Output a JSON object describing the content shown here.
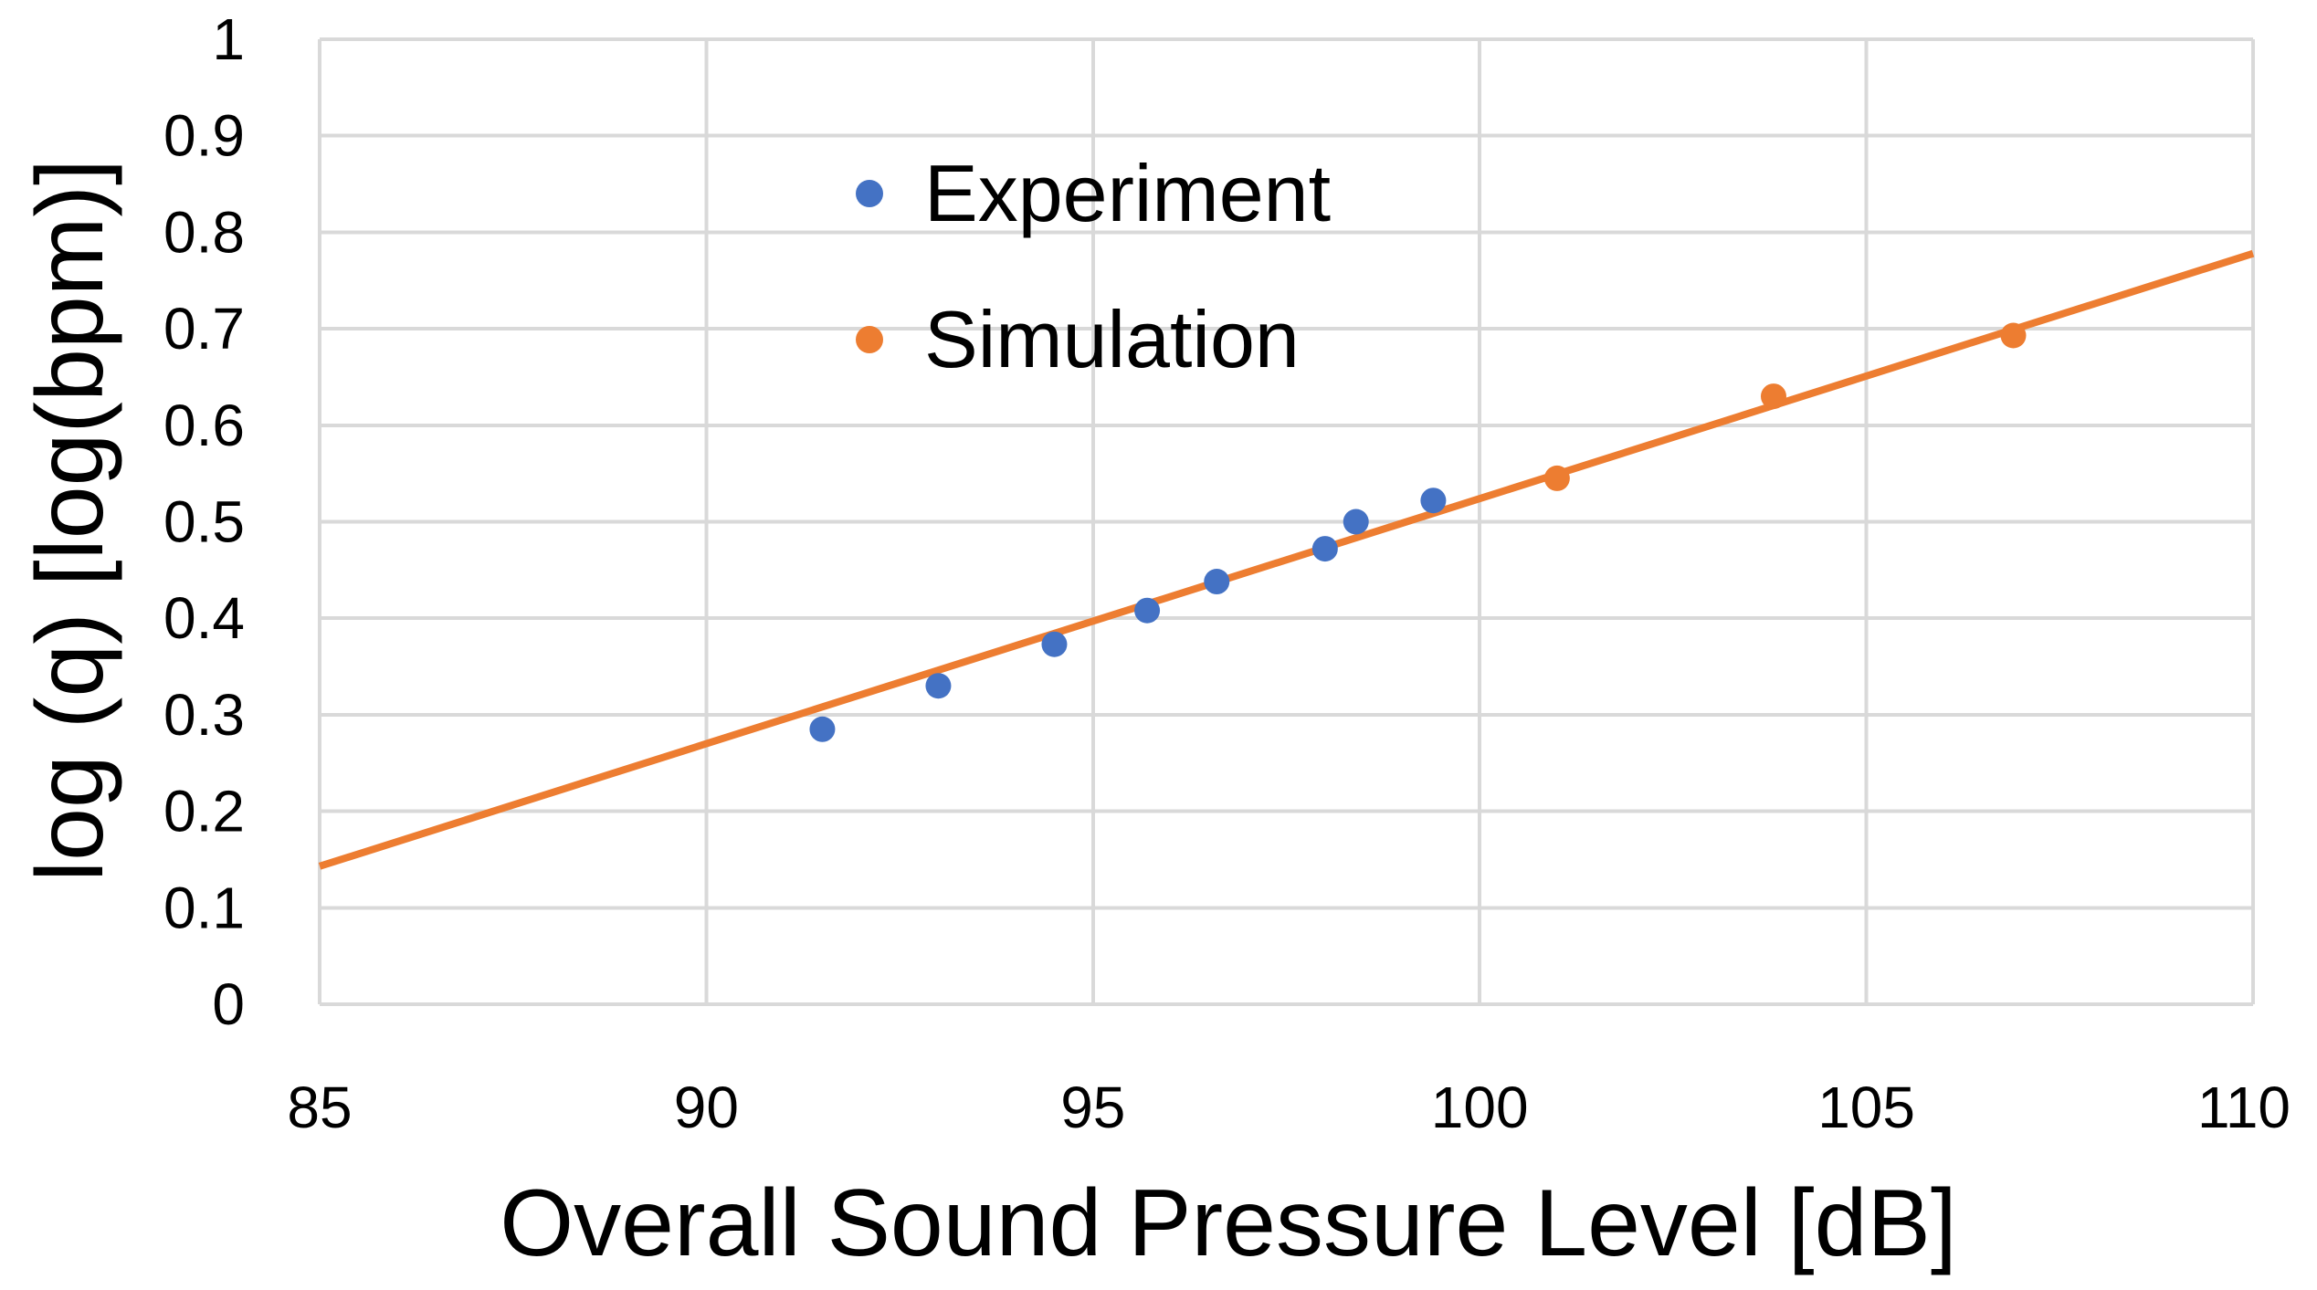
{
  "chart_data": {
    "type": "scatter",
    "xlabel": "Overall Sound Pressure Level [dB]",
    "ylabel": "log (q) [log(bpm)]",
    "xlim": [
      85,
      110
    ],
    "ylim": [
      0,
      1
    ],
    "x_ticks": [
      "85",
      "90",
      "95",
      "100",
      "105",
      "110"
    ],
    "y_ticks": [
      "0",
      "0.1",
      "0.2",
      "0.3",
      "0.4",
      "0.5",
      "0.6",
      "0.7",
      "0.8",
      "0.9",
      "1"
    ],
    "grid": true,
    "legend_position": "top-left inside",
    "series": [
      {
        "name": "Experiment",
        "color": "#4472c4",
        "x": [
          91.5,
          93.0,
          94.5,
          95.7,
          96.6,
          98.0,
          98.4,
          99.4
        ],
        "y": [
          0.285,
          0.33,
          0.373,
          0.408,
          0.438,
          0.472,
          0.5,
          0.522
        ]
      },
      {
        "name": "Simulation",
        "color": "#ed7d31",
        "x": [
          101.0,
          103.8,
          106.9
        ],
        "y": [
          0.545,
          0.63,
          0.693
        ]
      }
    ],
    "trendline": {
      "color": "#ed7d31",
      "x": [
        85,
        110
      ],
      "y": [
        0.143,
        0.778
      ]
    }
  }
}
